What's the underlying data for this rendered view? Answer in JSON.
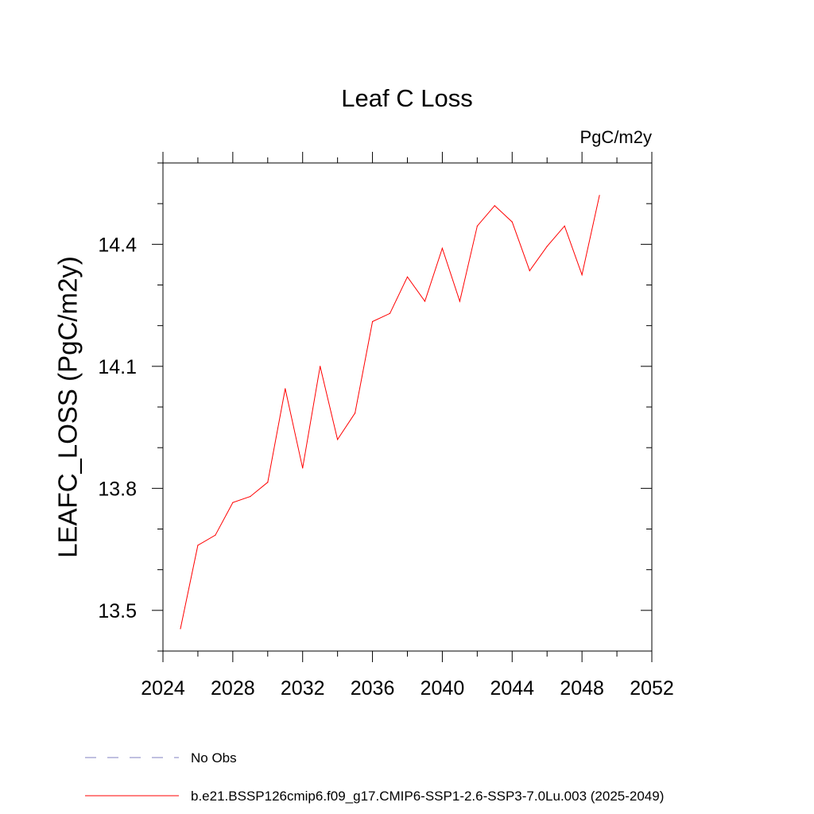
{
  "chart_data": {
    "type": "line",
    "title": "Leaf C Loss",
    "units_label": "PgC/m2y",
    "xlabel": "",
    "ylabel": "LEAFC_LOSS  (PgC/m2y)",
    "xlim": [
      2024,
      2052
    ],
    "ylim": [
      13.4,
      14.6
    ],
    "x_ticks": [
      2024,
      2028,
      2032,
      2036,
      2040,
      2044,
      2048,
      2052
    ],
    "x_minor_ticks": [
      2026,
      2030,
      2034,
      2038,
      2042,
      2046,
      2050
    ],
    "y_ticks": [
      13.5,
      13.8,
      14.1,
      14.4
    ],
    "y_tick_labels": [
      "13.5",
      "13.8",
      "14.1",
      "14.4"
    ],
    "y_minor_ticks": [
      13.4,
      13.6,
      13.7,
      13.9,
      14.0,
      14.2,
      14.3,
      14.5,
      14.6
    ],
    "grid": false,
    "series": [
      {
        "name": "b.e21.BSSP126cmip6.f09_g17.CMIP6-SSP1-2.6-SSP3-7.0Lu.003 (2025-2049)",
        "color": "#ff0000",
        "x": [
          2025,
          2026,
          2027,
          2028,
          2029,
          2030,
          2031,
          2032,
          2033,
          2034,
          2035,
          2036,
          2037,
          2038,
          2039,
          2040,
          2041,
          2042,
          2043,
          2044,
          2045,
          2046,
          2047,
          2048,
          2049
        ],
        "values": [
          13.455,
          13.66,
          13.685,
          13.765,
          13.78,
          13.815,
          14.045,
          13.85,
          14.1,
          13.92,
          13.985,
          14.21,
          14.23,
          14.32,
          14.26,
          14.39,
          14.26,
          14.445,
          14.495,
          14.455,
          14.335,
          14.395,
          14.445,
          14.325,
          14.52
        ]
      }
    ],
    "legend": [
      {
        "label": "No Obs",
        "style": "dashed",
        "color": "#8080c0"
      },
      {
        "label": "b.e21.BSSP126cmip6.f09_g17.CMIP6-SSP1-2.6-SSP3-7.0Lu.003 (2025-2049)",
        "style": "solid",
        "color": "#ff0000"
      }
    ]
  }
}
